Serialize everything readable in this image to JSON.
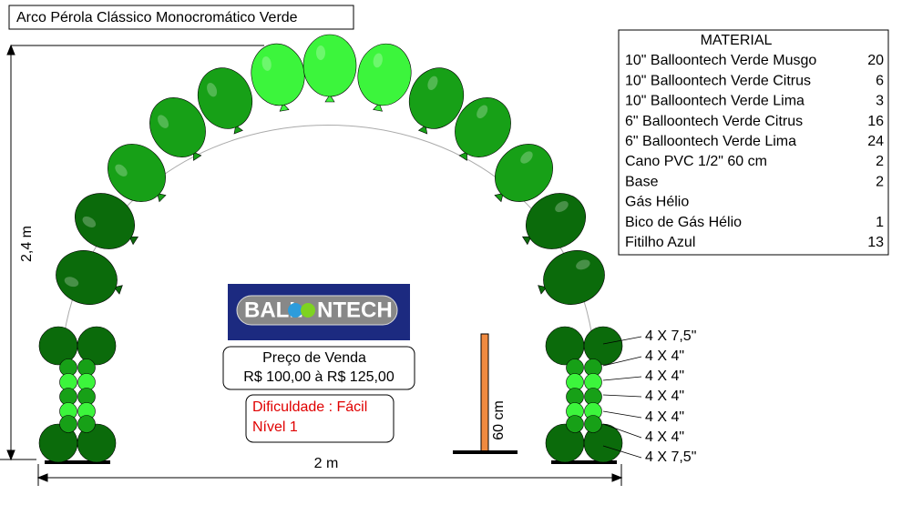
{
  "header": {
    "title": "Arco Pérola Clássico Monocromático Verde"
  },
  "material": {
    "title": "MATERIAL",
    "items": [
      {
        "name": "10\" Balloontech Verde Musgo",
        "qty": 20
      },
      {
        "name": "10\" Balloontech Verde Citrus",
        "qty": 6
      },
      {
        "name": "10\" Balloontech Verde Lima",
        "qty": 3
      },
      {
        "name": "6\" Balloontech Verde Citrus",
        "qty": 16
      },
      {
        "name": "6\" Balloontech Verde Lima",
        "qty": 24
      },
      {
        "name": "Cano PVC 1/2\" 60 cm",
        "qty": 2
      },
      {
        "name": "Base",
        "qty": 2
      },
      {
        "name": "Gás Hélio"
      },
      {
        "name": "Bico de Gás Hélio",
        "qty": 1
      },
      {
        "name": "Fitilho Azul",
        "qty": 13
      }
    ]
  },
  "dimensions": {
    "height": "2,4 m",
    "width": "2 m",
    "pole": "60 cm"
  },
  "logo": {
    "left": "BALL",
    "right": "NTECH"
  },
  "price": {
    "label": "Preço de Venda",
    "range": "R$ 100,00 à R$ 125,00"
  },
  "difficulty": {
    "level": "Dificuldade : Fácil",
    "grade": "Nível 1"
  },
  "column_labels": [
    "4 X 7,5\"",
    "4 X 4\"",
    "4 X 4\"",
    "4 X 4\"",
    "4 X 4\"",
    "4 X 4\"",
    "4 X 7,5\""
  ]
}
